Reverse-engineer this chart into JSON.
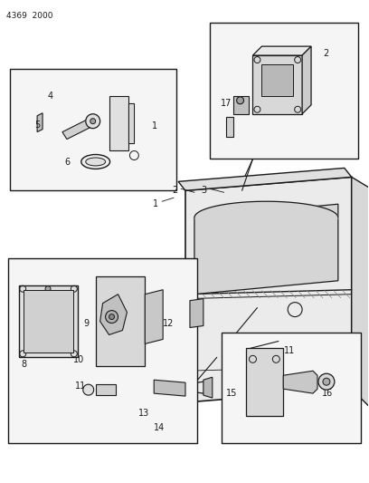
{
  "page_id": "4369  2000",
  "bg": "#ffffff",
  "lc": "#1a1a1a",
  "figsize": [
    4.08,
    5.33
  ],
  "dpi": 100
}
